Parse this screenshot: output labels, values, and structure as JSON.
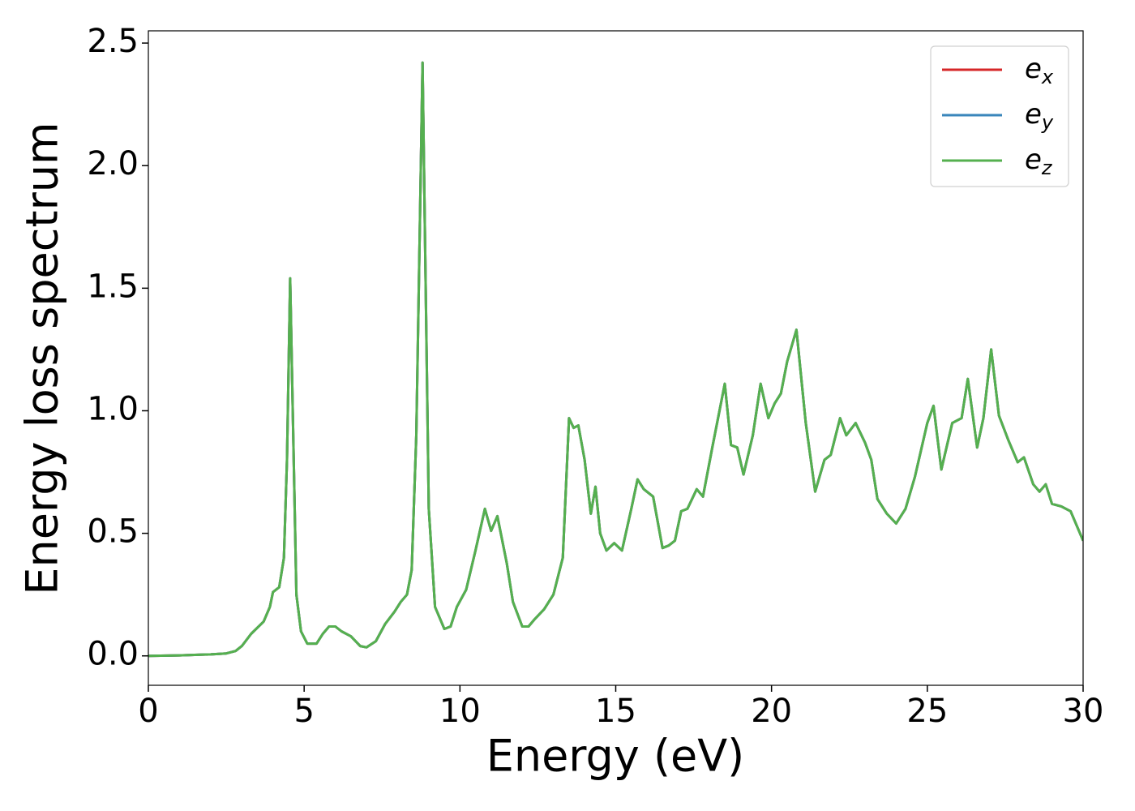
{
  "chart_data": {
    "type": "line",
    "xlabel": "Energy (eV)",
    "ylabel": "Energy loss spectrum",
    "xlim": [
      0,
      30
    ],
    "ylim": [
      -0.12,
      2.55
    ],
    "xticks": [
      0,
      5,
      10,
      15,
      20,
      25,
      30
    ],
    "yticks": [
      {
        "value": 0,
        "label": "0.0"
      },
      0.5,
      {
        "value": 1,
        "label": "1.0"
      },
      1.5,
      {
        "value": 2,
        "label": "2.0"
      },
      2.5
    ],
    "grid": false,
    "legend": "upper right",
    "x": [
      0,
      1,
      2,
      2.5,
      2.8,
      3.0,
      3.3,
      3.7,
      3.9,
      4.0,
      4.2,
      4.35,
      4.45,
      4.55,
      4.65,
      4.75,
      4.9,
      5.1,
      5.4,
      5.6,
      5.8,
      6.0,
      6.2,
      6.5,
      6.8,
      7.0,
      7.3,
      7.6,
      7.9,
      8.1,
      8.3,
      8.45,
      8.6,
      8.72,
      8.8,
      8.9,
      9.0,
      9.2,
      9.5,
      9.7,
      9.9,
      10.2,
      10.5,
      10.8,
      11.0,
      11.2,
      11.5,
      11.7,
      12.0,
      12.2,
      12.4,
      12.7,
      13.0,
      13.3,
      13.5,
      13.65,
      13.8,
      14.0,
      14.2,
      14.35,
      14.5,
      14.7,
      14.95,
      15.2,
      15.5,
      15.7,
      15.9,
      16.2,
      16.5,
      16.7,
      16.9,
      17.1,
      17.3,
      17.6,
      17.8,
      18.1,
      18.5,
      18.7,
      18.9,
      19.1,
      19.4,
      19.65,
      19.9,
      20.1,
      20.3,
      20.5,
      20.8,
      21.1,
      21.4,
      21.7,
      21.9,
      22.2,
      22.4,
      22.7,
      23.0,
      23.2,
      23.4,
      23.7,
      24.0,
      24.3,
      24.6,
      25.0,
      25.2,
      25.45,
      25.8,
      26.1,
      26.3,
      26.6,
      26.8,
      27.05,
      27.3,
      27.6,
      27.9,
      28.1,
      28.4,
      28.6,
      28.8,
      29.0,
      29.3,
      29.6,
      30.0
    ],
    "series": [
      {
        "name": "e_x",
        "color": "#d62728",
        "values": [
          0,
          0.002,
          0.006,
          0.01,
          0.02,
          0.04,
          0.09,
          0.14,
          0.2,
          0.26,
          0.28,
          0.4,
          0.8,
          1.54,
          0.9,
          0.25,
          0.1,
          0.05,
          0.05,
          0.09,
          0.12,
          0.12,
          0.1,
          0.08,
          0.04,
          0.035,
          0.06,
          0.13,
          0.18,
          0.22,
          0.25,
          0.35,
          0.9,
          1.8,
          2.42,
          1.5,
          0.6,
          0.2,
          0.11,
          0.12,
          0.2,
          0.27,
          0.43,
          0.6,
          0.51,
          0.57,
          0.38,
          0.22,
          0.12,
          0.12,
          0.15,
          0.19,
          0.25,
          0.4,
          0.97,
          0.93,
          0.94,
          0.8,
          0.58,
          0.69,
          0.5,
          0.43,
          0.46,
          0.43,
          0.6,
          0.72,
          0.68,
          0.65,
          0.44,
          0.45,
          0.47,
          0.59,
          0.6,
          0.68,
          0.65,
          0.85,
          1.11,
          0.86,
          0.85,
          0.74,
          0.9,
          1.11,
          0.97,
          1.03,
          1.07,
          1.2,
          1.33,
          0.95,
          0.67,
          0.8,
          0.82,
          0.97,
          0.9,
          0.95,
          0.87,
          0.8,
          0.64,
          0.58,
          0.54,
          0.6,
          0.73,
          0.95,
          1.02,
          0.76,
          0.95,
          0.97,
          1.13,
          0.85,
          0.97,
          1.25,
          0.98,
          0.88,
          0.79,
          0.81,
          0.7,
          0.67,
          0.7,
          0.62,
          0.61,
          0.59,
          0.47
        ]
      },
      {
        "name": "e_y",
        "color": "#3a86bb",
        "values": [
          0,
          0.002,
          0.006,
          0.01,
          0.02,
          0.04,
          0.09,
          0.14,
          0.2,
          0.26,
          0.28,
          0.4,
          0.8,
          1.54,
          0.9,
          0.25,
          0.1,
          0.05,
          0.05,
          0.09,
          0.12,
          0.12,
          0.1,
          0.08,
          0.04,
          0.035,
          0.06,
          0.13,
          0.18,
          0.22,
          0.25,
          0.35,
          0.9,
          1.8,
          2.42,
          1.5,
          0.6,
          0.2,
          0.11,
          0.12,
          0.2,
          0.27,
          0.43,
          0.6,
          0.51,
          0.57,
          0.38,
          0.22,
          0.12,
          0.12,
          0.15,
          0.19,
          0.25,
          0.4,
          0.97,
          0.93,
          0.94,
          0.8,
          0.58,
          0.69,
          0.5,
          0.43,
          0.46,
          0.43,
          0.6,
          0.72,
          0.68,
          0.65,
          0.44,
          0.45,
          0.47,
          0.59,
          0.6,
          0.68,
          0.65,
          0.85,
          1.11,
          0.86,
          0.85,
          0.74,
          0.9,
          1.11,
          0.97,
          1.03,
          1.07,
          1.2,
          1.33,
          0.95,
          0.67,
          0.8,
          0.82,
          0.97,
          0.9,
          0.95,
          0.87,
          0.8,
          0.64,
          0.58,
          0.54,
          0.6,
          0.73,
          0.95,
          1.02,
          0.76,
          0.95,
          0.97,
          1.13,
          0.85,
          0.97,
          1.25,
          0.98,
          0.88,
          0.79,
          0.81,
          0.7,
          0.67,
          0.7,
          0.62,
          0.61,
          0.59,
          0.47
        ]
      },
      {
        "name": "e_z",
        "color": "#55b04f",
        "values": [
          0,
          0.002,
          0.006,
          0.01,
          0.02,
          0.04,
          0.09,
          0.14,
          0.2,
          0.26,
          0.28,
          0.4,
          0.8,
          1.54,
          0.9,
          0.25,
          0.1,
          0.05,
          0.05,
          0.09,
          0.12,
          0.12,
          0.1,
          0.08,
          0.04,
          0.035,
          0.06,
          0.13,
          0.18,
          0.22,
          0.25,
          0.35,
          0.9,
          1.8,
          2.42,
          1.5,
          0.6,
          0.2,
          0.11,
          0.12,
          0.2,
          0.27,
          0.43,
          0.6,
          0.51,
          0.57,
          0.38,
          0.22,
          0.12,
          0.12,
          0.15,
          0.19,
          0.25,
          0.4,
          0.97,
          0.93,
          0.94,
          0.8,
          0.58,
          0.69,
          0.5,
          0.43,
          0.46,
          0.43,
          0.6,
          0.72,
          0.68,
          0.65,
          0.44,
          0.45,
          0.47,
          0.59,
          0.6,
          0.68,
          0.65,
          0.85,
          1.11,
          0.86,
          0.85,
          0.74,
          0.9,
          1.11,
          0.97,
          1.03,
          1.07,
          1.2,
          1.33,
          0.95,
          0.67,
          0.8,
          0.82,
          0.97,
          0.9,
          0.95,
          0.87,
          0.8,
          0.64,
          0.58,
          0.54,
          0.6,
          0.73,
          0.95,
          1.02,
          0.76,
          0.95,
          0.97,
          1.13,
          0.85,
          0.97,
          1.25,
          0.98,
          0.88,
          0.79,
          0.81,
          0.7,
          0.67,
          0.7,
          0.62,
          0.61,
          0.59,
          0.47
        ]
      }
    ]
  }
}
